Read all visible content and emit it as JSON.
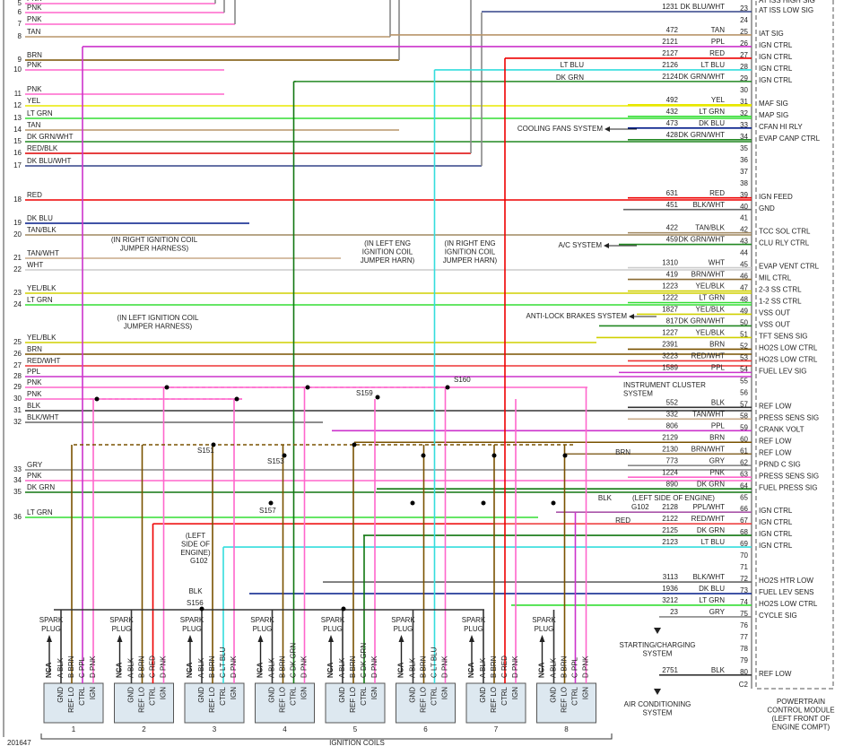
{
  "diagram_id": "201647",
  "top_function": "AT ISS HIGH SIG",
  "connector": "C2",
  "wire_colors": {
    "PNK": "#ff66cc",
    "TAN": "#b8956a",
    "BRN": "#7a5200",
    "YEL": "#e8e800",
    "LT GRN": "#33dd33",
    "DK GRN/WHT": "#228822",
    "RED/BLK": "#dd0000",
    "DK BLU/WHT": "#334488",
    "RED": "#ee0000",
    "DK BLU": "#001a88",
    "TAN/BLK": "#a08860",
    "TAN/WHT": "#c8aa88",
    "WHT": "#cccccc",
    "YEL/BLK": "#d0d000",
    "RED/WHT": "#ee3333",
    "PPL": "#cc33cc",
    "BLK": "#333333",
    "BLK/WHT": "#666666",
    "GRY": "#888888",
    "DK GRN": "#117711",
    "LT BLU": "#33dddd",
    "PPL/WHT": "#aa55aa",
    "BRN/WHT": "#8a6a30",
    "DK BLU/WHT2": "#334488"
  },
  "left_wires": [
    {
      "num": 5,
      "color": "PNK"
    },
    {
      "num": 6,
      "color": "PNK"
    },
    {
      "num": 7,
      "color": "PNK"
    },
    {
      "num": 8,
      "color": "TAN"
    },
    {
      "num": 9,
      "color": "BRN"
    },
    {
      "num": 10,
      "color": "PNK"
    },
    {
      "num": 11,
      "color": "PNK"
    },
    {
      "num": 12,
      "color": "YEL"
    },
    {
      "num": 13,
      "color": "LT GRN"
    },
    {
      "num": 14,
      "color": "TAN"
    },
    {
      "num": 15,
      "color": "DK GRN/WHT"
    },
    {
      "num": 16,
      "color": "RED/BLK"
    },
    {
      "num": 17,
      "color": "DK BLU/WHT"
    },
    {
      "num": 18,
      "color": "RED"
    },
    {
      "num": 19,
      "color": "DK BLU"
    },
    {
      "num": 20,
      "color": "TAN/BLK"
    },
    {
      "num": 21,
      "color": "TAN/WHT"
    },
    {
      "num": 22,
      "color": "WHT"
    },
    {
      "num": 23,
      "color": "YEL/BLK"
    },
    {
      "num": 24,
      "color": "LT GRN"
    },
    {
      "num": 25,
      "color": "YEL/BLK"
    },
    {
      "num": 26,
      "color": "BRN"
    },
    {
      "num": 27,
      "color": "RED/WHT"
    },
    {
      "num": 28,
      "color": "PPL"
    },
    {
      "num": 29,
      "color": "PNK"
    },
    {
      "num": 30,
      "color": "PNK"
    },
    {
      "num": 31,
      "color": "BLK"
    },
    {
      "num": 32,
      "color": "BLK/WHT"
    },
    {
      "num": 33,
      "color": "GRY"
    },
    {
      "num": 34,
      "color": "PNK"
    },
    {
      "num": 35,
      "color": "DK GRN"
    },
    {
      "num": 36,
      "color": "LT GRN"
    }
  ],
  "pcm_pins": [
    {
      "pin": 23,
      "circuit": "1231",
      "color": "DK BLU/WHT",
      "function": "AT ISS LOW SIG"
    },
    {
      "pin": 24
    },
    {
      "pin": 25,
      "circuit": "472",
      "color": "TAN",
      "function": "IAT SIG"
    },
    {
      "pin": 26,
      "circuit": "2121",
      "color": "PPL",
      "function": "IGN CTRL"
    },
    {
      "pin": 27,
      "circuit": "2127",
      "color": "RED",
      "function": "IGN CTRL"
    },
    {
      "pin": 28,
      "circuit": "2126",
      "color": "LT BLU",
      "function": "IGN CTRL"
    },
    {
      "pin": 29,
      "circuit": "2124",
      "color": "DK GRN/WHT",
      "function": "IGN CTRL"
    },
    {
      "pin": 30
    },
    {
      "pin": 31,
      "circuit": "492",
      "color": "YEL",
      "function": "MAF SIG"
    },
    {
      "pin": 32,
      "circuit": "432",
      "color": "LT GRN",
      "function": "MAP SIG"
    },
    {
      "pin": 33,
      "circuit": "473",
      "color": "DK BLU",
      "function": "CFAN HI RLY"
    },
    {
      "pin": 34,
      "circuit": "428",
      "color": "DK GRN/WHT",
      "function": "EVAP CANP CTRL"
    },
    {
      "pin": 35
    },
    {
      "pin": 36
    },
    {
      "pin": 37
    },
    {
      "pin": 38
    },
    {
      "pin": 39,
      "circuit": "631",
      "color": "RED",
      "function": "IGN FEED"
    },
    {
      "pin": 40,
      "circuit": "451",
      "color": "BLK/WHT",
      "function": "GND"
    },
    {
      "pin": 41
    },
    {
      "pin": 42,
      "circuit": "422",
      "color": "TAN/BLK",
      "function": "TCC SOL CTRL"
    },
    {
      "pin": 43,
      "circuit": "459",
      "color": "DK GRN/WHT",
      "function": "CLU RLY CTRL"
    },
    {
      "pin": 44
    },
    {
      "pin": 45,
      "circuit": "1310",
      "color": "WHT",
      "function": "EVAP VENT CTRL"
    },
    {
      "pin": 46,
      "circuit": "419",
      "color": "BRN/WHT",
      "function": "MIL CTRL"
    },
    {
      "pin": 47,
      "circuit": "1223",
      "color": "YEL/BLK",
      "function": "2-3 SS CTRL"
    },
    {
      "pin": 48,
      "circuit": "1222",
      "color": "LT GRN",
      "function": "1-2 SS CTRL"
    },
    {
      "pin": 49,
      "circuit": "1827",
      "color": "YEL/BLK",
      "function": "VSS OUT"
    },
    {
      "pin": 50,
      "circuit": "817",
      "color": "DK GRN/WHT",
      "function": "VSS OUT"
    },
    {
      "pin": 51,
      "circuit": "1227",
      "color": "YEL/BLK",
      "function": "TFT SENS SIG"
    },
    {
      "pin": 52,
      "circuit": "2391",
      "color": "BRN",
      "function": "HO2S LOW CTRL"
    },
    {
      "pin": 53,
      "circuit": "3223",
      "color": "RED/WHT",
      "function": "HO2S LOW CTRL"
    },
    {
      "pin": 54,
      "circuit": "1589",
      "color": "PPL",
      "function": "FUEL LEV SIG"
    },
    {
      "pin": 55
    },
    {
      "pin": 56
    },
    {
      "pin": 57,
      "circuit": "552",
      "color": "BLK",
      "function": "REF LOW"
    },
    {
      "pin": 58,
      "circuit": "332",
      "color": "TAN/WHT",
      "function": "PRESS SENS SIG"
    },
    {
      "pin": 59,
      "circuit": "806",
      "color": "PPL",
      "function": "CRANK VOLT"
    },
    {
      "pin": 60,
      "circuit": "2129",
      "color": "BRN",
      "function": "REF LOW"
    },
    {
      "pin": 61,
      "circuit": "2130",
      "color": "BRN/WHT",
      "function": "REF LOW"
    },
    {
      "pin": 62,
      "circuit": "773",
      "color": "GRY",
      "function": "PRND C SIG"
    },
    {
      "pin": 63,
      "circuit": "1224",
      "color": "PNK",
      "function": "PRESS SENS SIG"
    },
    {
      "pin": 64,
      "circuit": "890",
      "color": "DK GRN",
      "function": "FUEL PRESS SIG"
    },
    {
      "pin": 65
    },
    {
      "pin": 66,
      "circuit": "2128",
      "color": "PPL/WHT",
      "function": "IGN CTRL"
    },
    {
      "pin": 67,
      "circuit": "2122",
      "color": "RED/WHT",
      "function": "IGN CTRL"
    },
    {
      "pin": 68,
      "circuit": "2125",
      "color": "DK GRN",
      "function": "IGN CTRL"
    },
    {
      "pin": 69,
      "circuit": "2123",
      "color": "LT BLU",
      "function": "IGN CTRL"
    },
    {
      "pin": 70
    },
    {
      "pin": 71
    },
    {
      "pin": 72,
      "circuit": "3113",
      "color": "BLK/WHT",
      "function": "HO2S HTR LOW"
    },
    {
      "pin": 73,
      "circuit": "1936",
      "color": "DK BLU",
      "function": "FUEL LEV SENS"
    },
    {
      "pin": 74,
      "circuit": "3212",
      "color": "LT GRN",
      "function": "HO2S LOW CTRL"
    },
    {
      "pin": 75,
      "circuit": "23",
      "color": "GRY",
      "function": "CYCLE SIG"
    },
    {
      "pin": 76
    },
    {
      "pin": 77
    },
    {
      "pin": 78
    },
    {
      "pin": 79
    },
    {
      "pin": 80,
      "circuit": "2751",
      "color": "BLK",
      "function": "REF LOW"
    }
  ],
  "coil_box_labels": [
    "GND",
    "REF LO",
    "CTRL",
    "IGN"
  ],
  "spark_plug": [
    "SPARK",
    "PLUG"
  ],
  "coils": [
    {
      "num": 1,
      "pins": [
        "NCA",
        "A BLK",
        "B BRN",
        "C PPL",
        "D PNK"
      ]
    },
    {
      "num": 2,
      "pins": [
        "NCA",
        "A BLK",
        "B BRN",
        "C RED",
        "D PNK"
      ]
    },
    {
      "num": 3,
      "pins": [
        "NCA",
        "A BLK",
        "B BRN",
        "C LT BLU",
        "D PNK"
      ]
    },
    {
      "num": 4,
      "pins": [
        "NCA",
        "A BLK",
        "B BRN",
        "C DK GRN",
        "D PNK"
      ]
    },
    {
      "num": 5,
      "pins": [
        "NCA",
        "A BLK",
        "B BRN",
        "C DK GRN",
        "D PNK"
      ]
    },
    {
      "num": 6,
      "pins": [
        "NCA",
        "A BLK",
        "B BRN",
        "C LT BLU",
        "D PNK"
      ]
    },
    {
      "num": 7,
      "pins": [
        "NCA",
        "A BLK",
        "B BRN",
        "C RED",
        "D PNK"
      ]
    },
    {
      "num": 8,
      "pins": [
        "NCA",
        "A BLK",
        "B BRN",
        "C PPL",
        "D PNK"
      ]
    }
  ],
  "coils_title": "IGNITION COILS",
  "notes": [
    {
      "lines": [
        "(IN RIGHT IGNITION COIL",
        "JUMPER HARNESS)"
      ]
    },
    {
      "lines": [
        "(IN LEFT ENG",
        "IGNITION COIL",
        "JUMPER HARN)"
      ]
    },
    {
      "lines": [
        "(IN RIGHT ENG",
        "IGNITION COIL",
        "JUMPER HARN)"
      ]
    },
    {
      "lines": [
        "(IN LEFT IGNITION COIL",
        "JUMPER HARNESS)"
      ]
    },
    {
      "lines": [
        "COOLING FANS SYSTEM"
      ]
    },
    {
      "lines": [
        "A/C SYSTEM"
      ]
    },
    {
      "lines": [
        "ANTI-LOCK BRAKES SYSTEM"
      ]
    },
    {
      "lines": [
        "INSTRUMENT CLUSTER",
        "SYSTEM"
      ]
    },
    {
      "lines": [
        "STARTING/CHARGING",
        "SYSTEM"
      ]
    },
    {
      "lines": [
        "AIR CONDITIONING",
        "SYSTEM"
      ]
    },
    {
      "lines": [
        "POWERTRAIN",
        "CONTROL MODULE",
        "(LEFT FRONT OF",
        "ENGINE COMPT)"
      ]
    },
    {
      "lines": [
        "(LEFT",
        "SIDE OF",
        "ENGINE)"
      ]
    },
    {
      "lines": [
        "(LEFT SIDE OF ENGINE)"
      ]
    }
  ],
  "splices": [
    "S151",
    "S153",
    "S157",
    "S156",
    "S159",
    "S160",
    "G102",
    "G102"
  ],
  "wire_tags": [
    "LT BLU",
    "DK GRN",
    "BRN",
    "BLK",
    "RED",
    "BLK"
  ]
}
